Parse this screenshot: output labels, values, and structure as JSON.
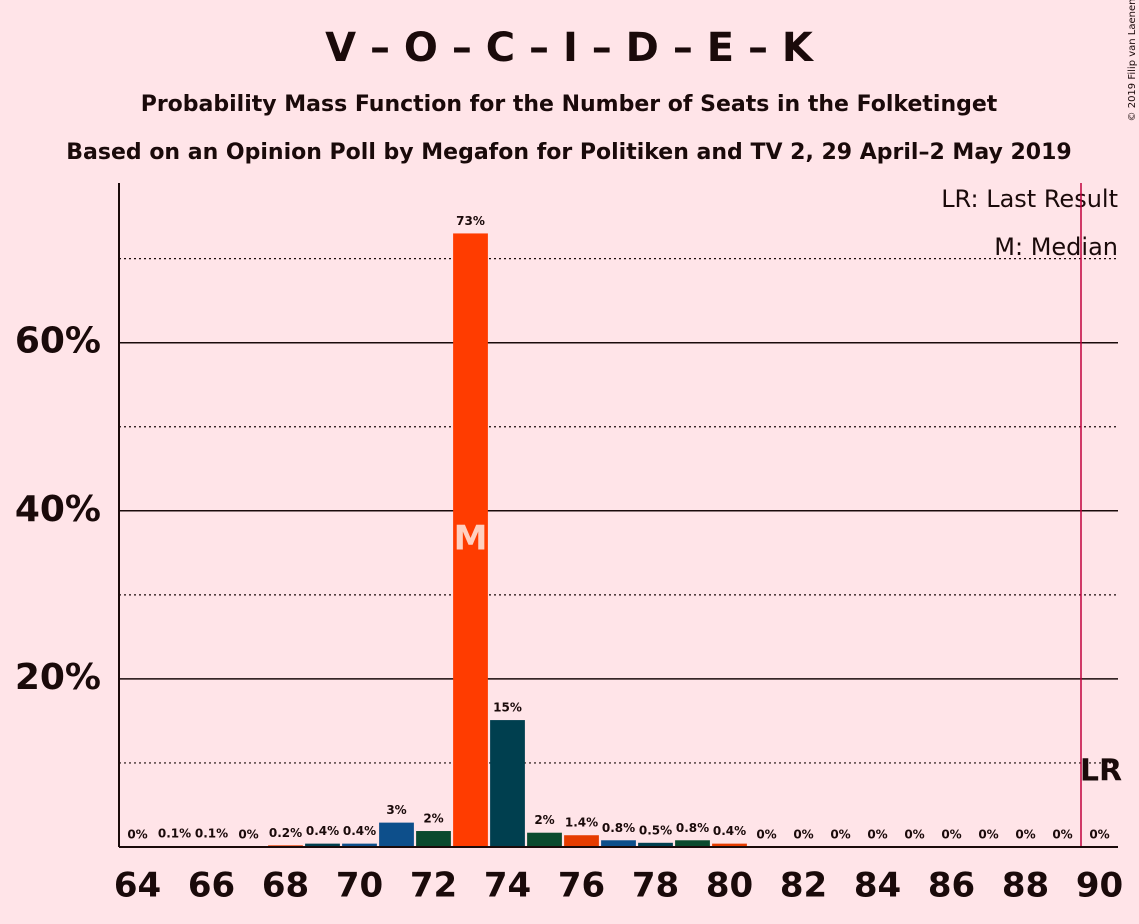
{
  "chart_data": {
    "type": "bar",
    "title": "V – O – C – I – D – E – K",
    "subtitle": "Probability Mass Function for the Number of Seats in the Folketinget",
    "subtitle2": "Based on an Opinion Poll by Megafon for Politiken and TV 2, 29 April–2 May 2019",
    "copyright": "© 2019 Filip van Laenen",
    "x": [
      64,
      65,
      66,
      67,
      68,
      69,
      70,
      71,
      72,
      73,
      74,
      75,
      76,
      77,
      78,
      79,
      80,
      81,
      82,
      83,
      84,
      85,
      86,
      87,
      88,
      89,
      90
    ],
    "values": [
      0,
      0.1,
      0.1,
      0,
      0.2,
      0.4,
      0.4,
      2.9,
      1.9,
      73,
      15.1,
      1.7,
      1.4,
      0.8,
      0.5,
      0.8,
      0.4,
      0,
      0,
      0,
      0,
      0,
      0,
      0,
      0,
      0,
      0
    ],
    "value_labels": [
      "0%",
      "0.1%",
      "0.1%",
      "0%",
      "0.2%",
      "0.4%",
      "0.4%",
      "3%",
      "2%",
      "73%",
      "15%",
      "2%",
      "1.4%",
      "0.8%",
      "0.5%",
      "0.8%",
      "0.4%",
      "0%",
      "0%",
      "0%",
      "0%",
      "0%",
      "0%",
      "0%",
      "0%",
      "0%",
      "0%"
    ],
    "colors": [
      "#e63c00",
      "#003f4f",
      "#0d4f8b",
      "#0b4a2e",
      "#e63c00",
      "#003f4f",
      "#0d4f8b",
      "#0d4f8b",
      "#0b4a2e",
      "#ff3c00",
      "#003f4f",
      "#0b4a2e",
      "#e63c00",
      "#0d4f8b",
      "#003f4f",
      "#0b4a2e",
      "#e63c00",
      "#e63c00",
      "#003f4f",
      "#0d4f8b",
      "#0b4a2e",
      "#e63c00",
      "#003f4f",
      "#0d4f8b",
      "#0b4a2e",
      "#e63c00",
      "#003f4f"
    ],
    "xlim": [
      63.5,
      90.5
    ],
    "xticks": [
      64,
      66,
      68,
      70,
      72,
      74,
      76,
      78,
      80,
      82,
      84,
      86,
      88,
      90
    ],
    "ylim": [
      0,
      79
    ],
    "yticks": [
      {
        "value": 20,
        "label": "20%"
      },
      {
        "value": 40,
        "label": "40%"
      },
      {
        "value": 60,
        "label": "60%"
      }
    ],
    "minor_yticks": [
      10,
      30,
      50,
      70
    ],
    "grid": true,
    "median": 73,
    "median_label": "M",
    "last_result": 89.5,
    "last_result_label": "LR",
    "legend": [
      "LR: Last Result",
      "M: Median"
    ]
  }
}
